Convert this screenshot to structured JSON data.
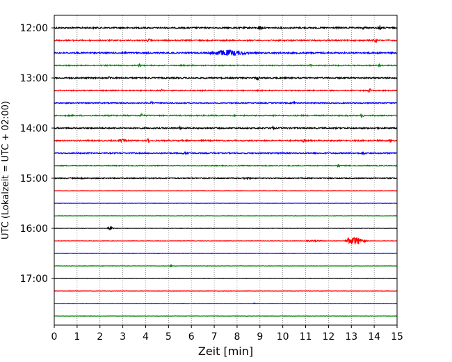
{
  "chart_data": {
    "type": "line",
    "title": "",
    "xlabel": "Zeit  [min]",
    "ylabel": "UTC (Lokalzeit = UTC + 02:00)",
    "xlim": [
      0,
      15
    ],
    "x_ticks": [
      0,
      1,
      2,
      3,
      4,
      5,
      6,
      7,
      8,
      9,
      10,
      11,
      12,
      13,
      14,
      15
    ],
    "y_tick_labels": [
      "12:00",
      "13:00",
      "14:00",
      "15:00",
      "16:00",
      "17:00"
    ],
    "grid": "vertical dotted",
    "trace_colors": [
      "#000000",
      "#ff0000",
      "#0000ff",
      "#008000"
    ],
    "traces": [
      {
        "start": "12:00",
        "noise": 1.0,
        "events": [
          {
            "t": 8.95,
            "amp": 2.6,
            "dur": 0.3
          },
          {
            "t": 13.5,
            "amp": 1.6,
            "dur": 0.3
          },
          {
            "t": 14.2,
            "amp": 3.0,
            "dur": 0.3
          }
        ]
      },
      {
        "start": "12:15",
        "noise": 0.9,
        "events": [
          {
            "t": 4.1,
            "amp": 1.5,
            "dur": 0.3
          },
          {
            "t": 14.0,
            "amp": 2.8,
            "dur": 0.25
          }
        ]
      },
      {
        "start": "12:30",
        "noise": 1.0,
        "events": [
          {
            "t": 6.8,
            "amp": 3.6,
            "dur": 3.0
          },
          {
            "t": 3.0,
            "amp": 1.2,
            "dur": 0.3
          }
        ]
      },
      {
        "start": "12:45",
        "noise": 0.7,
        "events": [
          {
            "t": 3.7,
            "amp": 2.2,
            "dur": 0.2
          },
          {
            "t": 11.2,
            "amp": 1.4,
            "dur": 0.2
          },
          {
            "t": 14.2,
            "amp": 1.7,
            "dur": 0.2
          }
        ]
      },
      {
        "start": "13:00",
        "noise": 0.9,
        "events": [
          {
            "t": 2.4,
            "amp": 1.8,
            "dur": 0.3
          },
          {
            "t": 8.85,
            "amp": 2.2,
            "dur": 0.3
          }
        ]
      },
      {
        "start": "13:15",
        "noise": 0.7,
        "events": [
          {
            "t": 4.7,
            "amp": 1.6,
            "dur": 0.2
          },
          {
            "t": 13.75,
            "amp": 2.6,
            "dur": 0.25
          }
        ]
      },
      {
        "start": "13:30",
        "noise": 0.7,
        "events": [
          {
            "t": 4.25,
            "amp": 1.8,
            "dur": 0.2
          },
          {
            "t": 10.45,
            "amp": 2.5,
            "dur": 0.2
          }
        ]
      },
      {
        "start": "13:45",
        "noise": 0.8,
        "events": [
          {
            "t": 3.8,
            "amp": 2.0,
            "dur": 0.2
          },
          {
            "t": 9.6,
            "amp": 1.4,
            "dur": 0.2
          },
          {
            "t": 13.45,
            "amp": 2.3,
            "dur": 0.2
          }
        ]
      },
      {
        "start": "14:00",
        "noise": 0.9,
        "events": [
          {
            "t": 9.45,
            "amp": 1.8,
            "dur": 0.4
          },
          {
            "t": 5.5,
            "amp": 1.2,
            "dur": 0.2
          }
        ]
      },
      {
        "start": "14:15",
        "noise": 0.9,
        "events": [
          {
            "t": 2.8,
            "amp": 1.4,
            "dur": 0.7
          },
          {
            "t": 4.1,
            "amp": 2.4,
            "dur": 0.2
          },
          {
            "t": 10.9,
            "amp": 1.5,
            "dur": 0.2
          },
          {
            "t": 14.7,
            "amp": 1.6,
            "dur": 0.2
          }
        ]
      },
      {
        "start": "14:30",
        "noise": 0.8,
        "events": [
          {
            "t": 5.6,
            "amp": 1.0,
            "dur": 0.7
          },
          {
            "t": 13.5,
            "amp": 2.3,
            "dur": 0.2
          }
        ]
      },
      {
        "start": "14:45",
        "noise": 0.6,
        "events": [
          {
            "t": 12.4,
            "amp": 1.9,
            "dur": 0.2
          }
        ]
      },
      {
        "start": "15:00",
        "noise": 0.7,
        "events": [
          {
            "t": 1.2,
            "amp": 1.1,
            "dur": 0.2
          },
          {
            "t": 8.3,
            "amp": 1.0,
            "dur": 0.6
          }
        ]
      },
      {
        "start": "15:15",
        "noise": 0.25,
        "events": []
      },
      {
        "start": "15:30",
        "noise": 0.25,
        "events": []
      },
      {
        "start": "15:45",
        "noise": 0.25,
        "events": []
      },
      {
        "start": "16:00",
        "noise": 0.3,
        "events": [
          {
            "t": 2.35,
            "amp": 2.8,
            "dur": 0.5
          }
        ]
      },
      {
        "start": "16:15",
        "noise": 0.3,
        "events": [
          {
            "t": 11.0,
            "amp": 0.8,
            "dur": 1.5
          },
          {
            "t": 12.75,
            "amp": 6.0,
            "dur": 1.6
          }
        ]
      },
      {
        "start": "16:30",
        "noise": 0.25,
        "events": []
      },
      {
        "start": "16:45",
        "noise": 0.25,
        "events": [
          {
            "t": 5.1,
            "amp": 1.3,
            "dur": 0.15
          }
        ]
      },
      {
        "start": "17:00",
        "noise": 0.25,
        "events": []
      },
      {
        "start": "17:15",
        "noise": 0.25,
        "events": []
      },
      {
        "start": "17:30",
        "noise": 0.25,
        "events": [
          {
            "t": 8.75,
            "amp": 0.9,
            "dur": 0.1
          }
        ]
      },
      {
        "start": "17:45",
        "noise": 0.25,
        "events": []
      }
    ]
  }
}
